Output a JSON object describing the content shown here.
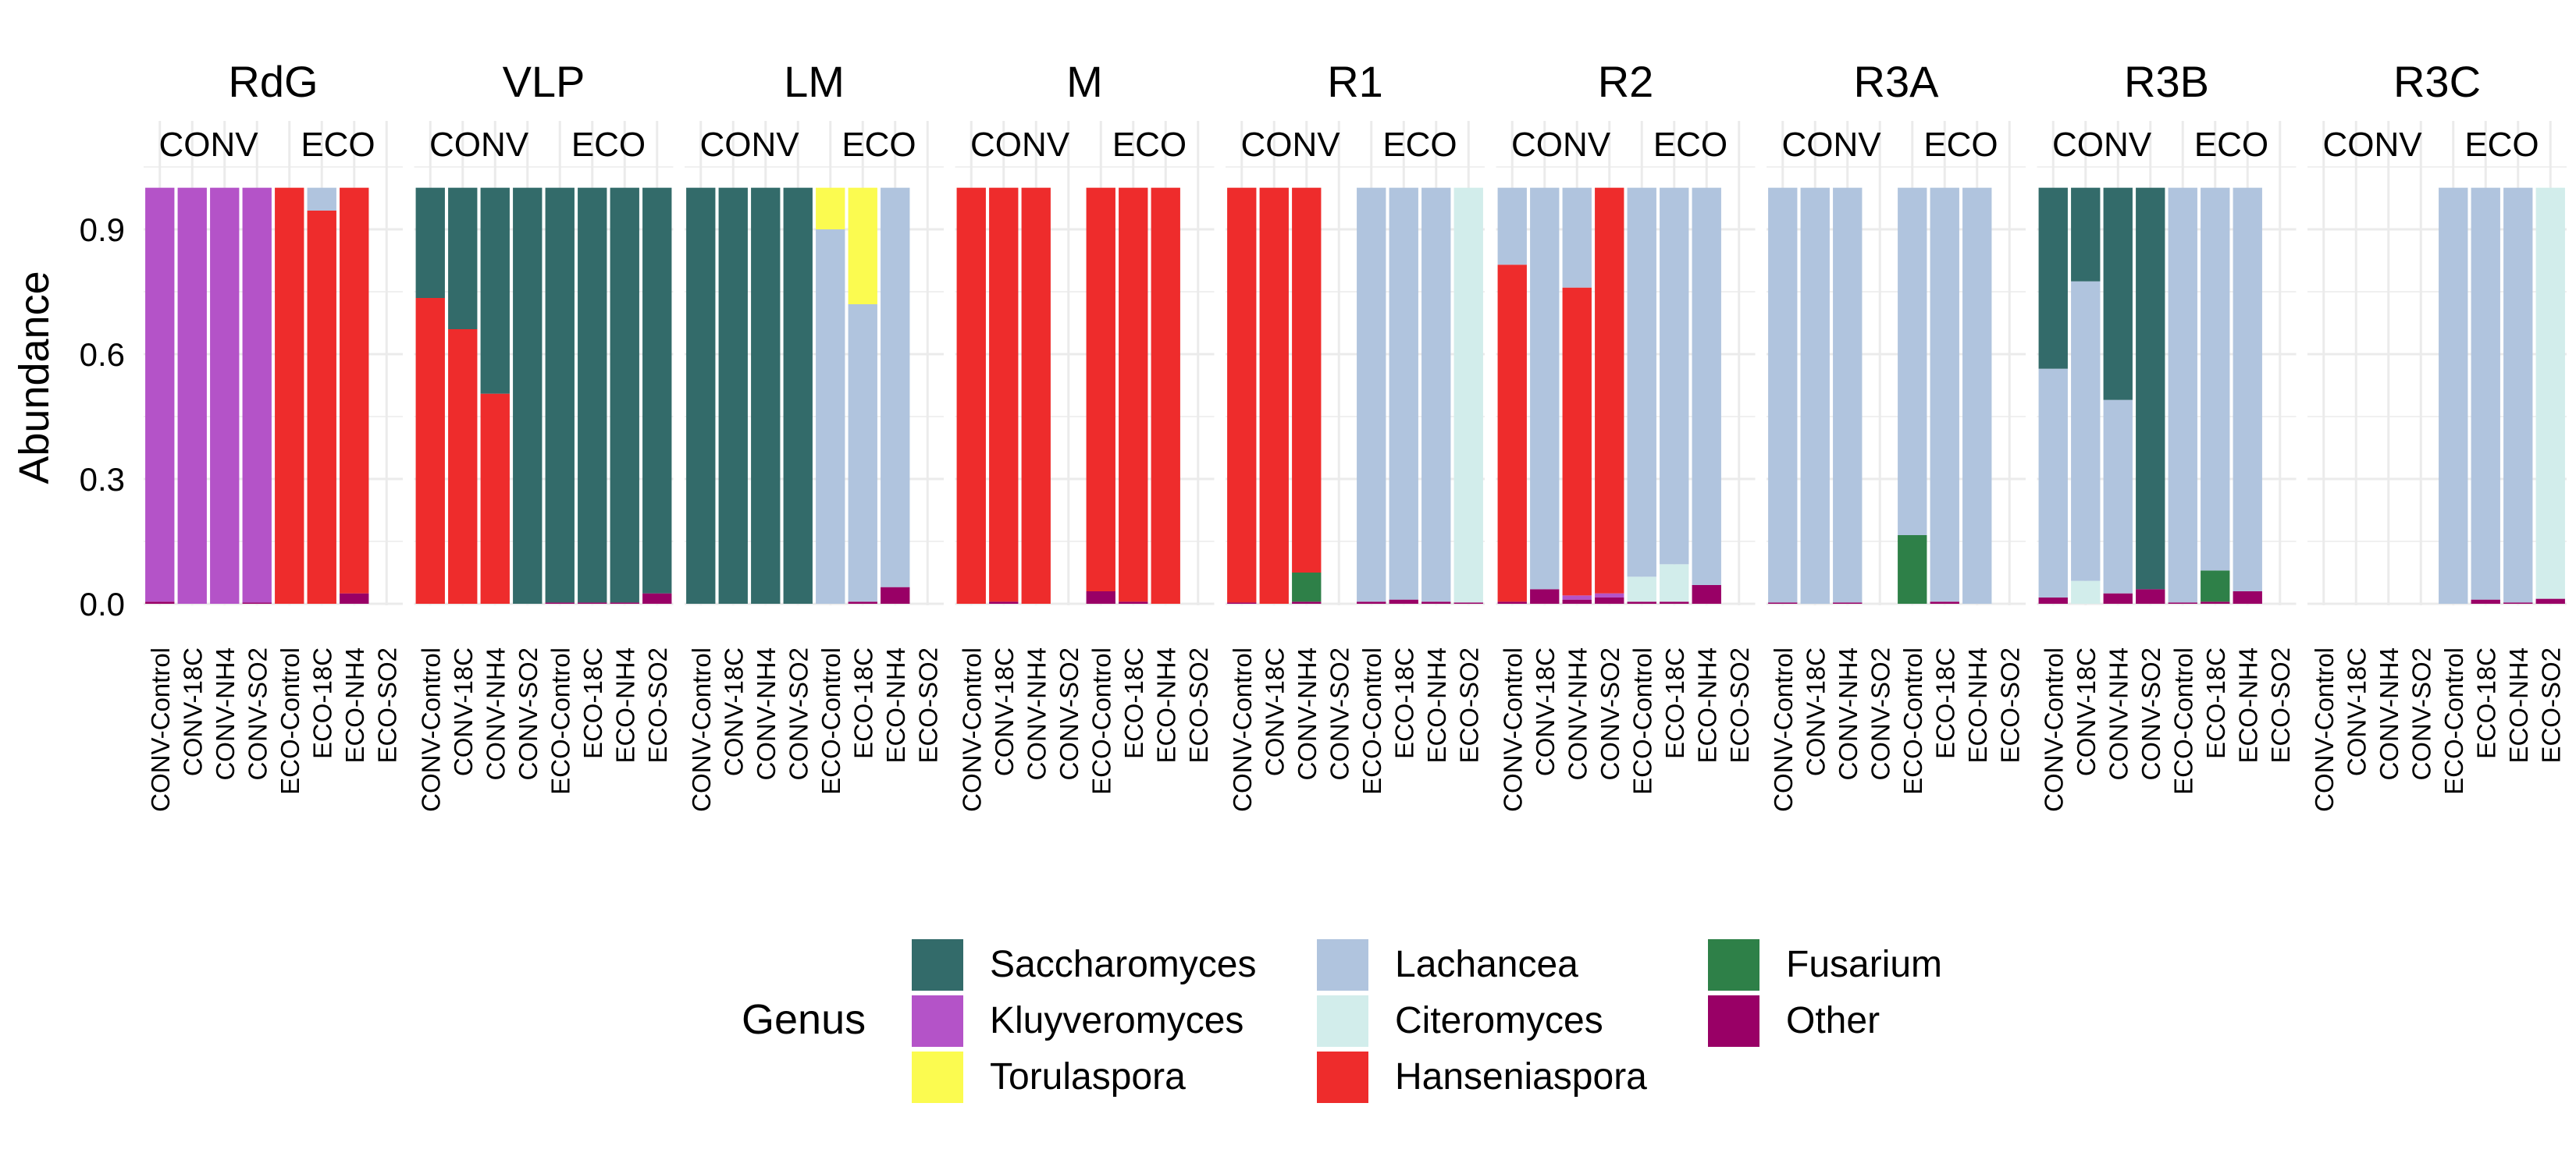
{
  "chart_data": {
    "type": "bar",
    "stacked": true,
    "ylabel": "Abundance",
    "xlabel": "",
    "ylim": [
      0,
      1
    ],
    "yticks": [
      0.0,
      0.3,
      0.6,
      0.9
    ],
    "ytick_labels": [
      "0.0",
      "0.3",
      "0.6",
      "0.9"
    ],
    "grid": true,
    "legend_position": "bottom",
    "samples": [
      "CONV-Control",
      "CONV-18C",
      "CONV-NH4",
      "CONV-SO2",
      "ECO-Control",
      "ECO-18C",
      "ECO-NH4",
      "ECO-SO2"
    ],
    "groups": [
      "CONV",
      "ECO"
    ],
    "legend": {
      "title": "Genus",
      "entries": [
        {
          "name": "Saccharomyces",
          "color": "#336B6A"
        },
        {
          "name": "Kluyveromyces",
          "color": "#B453C8"
        },
        {
          "name": "Torulaspora",
          "color": "#FBFB50"
        },
        {
          "name": "Lachancea",
          "color": "#B0C4DE"
        },
        {
          "name": "Citeromyces",
          "color": "#D2EDEB"
        },
        {
          "name": "Hanseniaspora",
          "color": "#EE2C2C"
        },
        {
          "name": "Fusarium",
          "color": "#2E8048"
        },
        {
          "name": "Other",
          "color": "#990066"
        }
      ]
    },
    "panels": [
      {
        "title": "RdG",
        "bars": [
          {
            "segments": [
              [
                "Other",
                0.005
              ],
              [
                "Kluyveromyces",
                0.995
              ]
            ]
          },
          {
            "segments": [
              [
                "Kluyveromyces",
                1.0
              ]
            ]
          },
          {
            "segments": [
              [
                "Kluyveromyces",
                1.0
              ]
            ]
          },
          {
            "segments": [
              [
                "Other",
                0.003
              ],
              [
                "Kluyveromyces",
                0.997
              ]
            ]
          },
          {
            "segments": [
              [
                "Hanseniaspora",
                1.0
              ]
            ]
          },
          {
            "segments": [
              [
                "Hanseniaspora",
                0.945
              ],
              [
                "Lachancea",
                0.055
              ]
            ]
          },
          {
            "segments": [
              [
                "Other",
                0.025
              ],
              [
                "Hanseniaspora",
                0.975
              ]
            ]
          },
          {
            "segments": []
          }
        ]
      },
      {
        "title": "VLP",
        "bars": [
          {
            "segments": [
              [
                "Hanseniaspora",
                0.735
              ],
              [
                "Saccharomyces",
                0.265
              ]
            ]
          },
          {
            "segments": [
              [
                "Hanseniaspora",
                0.66
              ],
              [
                "Saccharomyces",
                0.34
              ]
            ]
          },
          {
            "segments": [
              [
                "Hanseniaspora",
                0.505
              ],
              [
                "Saccharomyces",
                0.495
              ]
            ]
          },
          {
            "segments": [
              [
                "Saccharomyces",
                1.0
              ]
            ]
          },
          {
            "segments": [
              [
                "Other",
                0.003
              ],
              [
                "Saccharomyces",
                0.997
              ]
            ]
          },
          {
            "segments": [
              [
                "Other",
                0.003
              ],
              [
                "Saccharomyces",
                0.997
              ]
            ]
          },
          {
            "segments": [
              [
                "Other",
                0.003
              ],
              [
                "Saccharomyces",
                0.997
              ]
            ]
          },
          {
            "segments": [
              [
                "Other",
                0.025
              ],
              [
                "Saccharomyces",
                0.975
              ]
            ]
          }
        ]
      },
      {
        "title": "LM",
        "bars": [
          {
            "segments": [
              [
                "Saccharomyces",
                1.0
              ]
            ]
          },
          {
            "segments": [
              [
                "Saccharomyces",
                1.0
              ]
            ]
          },
          {
            "segments": [
              [
                "Saccharomyces",
                1.0
              ]
            ]
          },
          {
            "segments": [
              [
                "Saccharomyces",
                1.0
              ]
            ]
          },
          {
            "segments": [
              [
                "Lachancea",
                0.9
              ],
              [
                "Torulaspora",
                0.1
              ]
            ]
          },
          {
            "segments": [
              [
                "Other",
                0.005
              ],
              [
                "Lachancea",
                0.715
              ],
              [
                "Torulaspora",
                0.28
              ]
            ]
          },
          {
            "segments": [
              [
                "Other",
                0.04
              ],
              [
                "Lachancea",
                0.96
              ]
            ]
          },
          {
            "segments": []
          }
        ]
      },
      {
        "title": "M",
        "bars": [
          {
            "segments": [
              [
                "Hanseniaspora",
                1.0
              ]
            ]
          },
          {
            "segments": [
              [
                "Other",
                0.005
              ],
              [
                "Hanseniaspora",
                0.995
              ]
            ]
          },
          {
            "segments": [
              [
                "Hanseniaspora",
                1.0
              ]
            ]
          },
          {
            "segments": []
          },
          {
            "segments": [
              [
                "Other",
                0.03
              ],
              [
                "Hanseniaspora",
                0.97
              ]
            ]
          },
          {
            "segments": [
              [
                "Other",
                0.005
              ],
              [
                "Hanseniaspora",
                0.995
              ]
            ]
          },
          {
            "segments": [
              [
                "Hanseniaspora",
                1.0
              ]
            ]
          },
          {
            "segments": []
          }
        ]
      },
      {
        "title": "R1",
        "bars": [
          {
            "segments": [
              [
                "Other",
                0.003
              ],
              [
                "Hanseniaspora",
                0.997
              ]
            ]
          },
          {
            "segments": [
              [
                "Hanseniaspora",
                1.0
              ]
            ]
          },
          {
            "segments": [
              [
                "Other",
                0.005
              ],
              [
                "Fusarium",
                0.07
              ],
              [
                "Hanseniaspora",
                0.925
              ]
            ]
          },
          {
            "segments": []
          },
          {
            "segments": [
              [
                "Other",
                0.005
              ],
              [
                "Lachancea",
                0.995
              ]
            ]
          },
          {
            "segments": [
              [
                "Other",
                0.01
              ],
              [
                "Lachancea",
                0.99
              ]
            ]
          },
          {
            "segments": [
              [
                "Other",
                0.005
              ],
              [
                "Lachancea",
                0.995
              ]
            ]
          },
          {
            "segments": [
              [
                "Other",
                0.003
              ],
              [
                "Citeromyces",
                0.997
              ]
            ]
          }
        ]
      },
      {
        "title": "R2",
        "bars": [
          {
            "segments": [
              [
                "Other",
                0.005
              ],
              [
                "Hanseniaspora",
                0.81
              ],
              [
                "Lachancea",
                0.185
              ]
            ]
          },
          {
            "segments": [
              [
                "Other",
                0.035
              ],
              [
                "Lachancea",
                0.965
              ]
            ]
          },
          {
            "segments": [
              [
                "Other",
                0.01
              ],
              [
                "Kluyveromyces",
                0.01
              ],
              [
                "Hanseniaspora",
                0.74
              ],
              [
                "Lachancea",
                0.24
              ]
            ]
          },
          {
            "segments": [
              [
                "Other",
                0.015
              ],
              [
                "Kluyveromyces",
                0.01
              ],
              [
                "Hanseniaspora",
                0.975
              ]
            ]
          },
          {
            "segments": [
              [
                "Other",
                0.005
              ],
              [
                "Citeromyces",
                0.06
              ],
              [
                "Lachancea",
                0.935
              ]
            ]
          },
          {
            "segments": [
              [
                "Other",
                0.005
              ],
              [
                "Citeromyces",
                0.09
              ],
              [
                "Lachancea",
                0.905
              ]
            ]
          },
          {
            "segments": [
              [
                "Other",
                0.045
              ],
              [
                "Lachancea",
                0.955
              ]
            ]
          },
          {
            "segments": []
          }
        ]
      },
      {
        "title": "R3A",
        "bars": [
          {
            "segments": [
              [
                "Other",
                0.003
              ],
              [
                "Lachancea",
                0.997
              ]
            ]
          },
          {
            "segments": [
              [
                "Lachancea",
                1.0
              ]
            ]
          },
          {
            "segments": [
              [
                "Other",
                0.003
              ],
              [
                "Lachancea",
                0.997
              ]
            ]
          },
          {
            "segments": []
          },
          {
            "segments": [
              [
                "Fusarium",
                0.165
              ],
              [
                "Lachancea",
                0.835
              ]
            ]
          },
          {
            "segments": [
              [
                "Other",
                0.005
              ],
              [
                "Lachancea",
                0.995
              ]
            ]
          },
          {
            "segments": [
              [
                "Lachancea",
                1.0
              ]
            ]
          },
          {
            "segments": []
          }
        ]
      },
      {
        "title": "R3B",
        "bars": [
          {
            "segments": [
              [
                "Other",
                0.015
              ],
              [
                "Lachancea",
                0.55
              ],
              [
                "Saccharomyces",
                0.435
              ]
            ]
          },
          {
            "segments": [
              [
                "Citeromyces",
                0.055
              ],
              [
                "Lachancea",
                0.72
              ],
              [
                "Saccharomyces",
                0.225
              ]
            ]
          },
          {
            "segments": [
              [
                "Other",
                0.025
              ],
              [
                "Lachancea",
                0.465
              ],
              [
                "Saccharomyces",
                0.51
              ]
            ]
          },
          {
            "segments": [
              [
                "Other",
                0.035
              ],
              [
                "Saccharomyces",
                0.965
              ]
            ]
          },
          {
            "segments": [
              [
                "Other",
                0.003
              ],
              [
                "Lachancea",
                0.997
              ]
            ]
          },
          {
            "segments": [
              [
                "Other",
                0.005
              ],
              [
                "Fusarium",
                0.075
              ],
              [
                "Lachancea",
                0.92
              ]
            ]
          },
          {
            "segments": [
              [
                "Other",
                0.03
              ],
              [
                "Lachancea",
                0.97
              ]
            ]
          },
          {
            "segments": []
          }
        ]
      },
      {
        "title": "R3C",
        "bars": [
          {
            "segments": []
          },
          {
            "segments": []
          },
          {
            "segments": []
          },
          {
            "segments": []
          },
          {
            "segments": [
              [
                "Lachancea",
                1.0
              ]
            ]
          },
          {
            "segments": [
              [
                "Other",
                0.01
              ],
              [
                "Lachancea",
                0.99
              ]
            ]
          },
          {
            "segments": [
              [
                "Other",
                0.003
              ],
              [
                "Lachancea",
                0.997
              ]
            ]
          },
          {
            "segments": [
              [
                "Other",
                0.012
              ],
              [
                "Citeromyces",
                0.988
              ]
            ]
          }
        ]
      }
    ]
  }
}
